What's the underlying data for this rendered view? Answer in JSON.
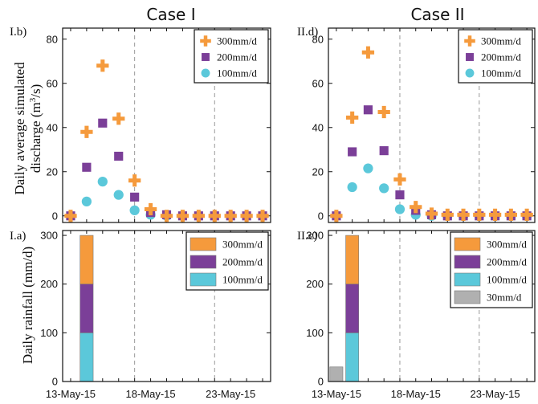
{
  "figure": {
    "case_titles": [
      "Case I",
      "Case II"
    ],
    "discharge_ylabel": "Daily average simulated",
    "discharge_ylabel_line2": "discharge (m",
    "discharge_ylabel_sup": "3",
    "discharge_ylabel_end": "/s)",
    "rainfall_ylabel": "Daily rainfall (mm/d)",
    "date_ticks": [
      "13-May-15",
      "18-May-15",
      "23-May-15"
    ]
  },
  "colors": {
    "c300": "#f59a3c",
    "c200": "#7b3f98",
    "c100": "#5bc8da",
    "c30": "#b0b0b0",
    "frame": "#111111",
    "grid": "#999999"
  },
  "chart_data": [
    {
      "panel_label": "I.b)",
      "type": "scatter",
      "x": [
        1,
        2,
        3,
        4,
        5,
        6,
        7,
        8,
        9,
        10,
        11,
        12,
        13
      ],
      "xlim": [
        0.5,
        13.5
      ],
      "ylim": [
        -3,
        85
      ],
      "yticks": [
        0,
        20,
        40,
        60,
        80
      ],
      "grid_x": [
        5,
        10
      ],
      "legend": "top-right",
      "series": [
        {
          "name": "300mm/d",
          "marker": "plus",
          "color": "#f59a3c",
          "values": [
            0,
            38,
            68,
            44,
            16,
            3,
            0,
            0,
            0,
            0,
            0,
            0,
            0
          ]
        },
        {
          "name": "200mm/d",
          "marker": "square",
          "color": "#7b3f98",
          "values": [
            0,
            22,
            42,
            27,
            8.5,
            1.5,
            0.5,
            0,
            0,
            0,
            0,
            0,
            0
          ]
        },
        {
          "name": "100mm/d",
          "marker": "circle",
          "color": "#5bc8da",
          "values": [
            0,
            6.5,
            15.5,
            9.5,
            2.5,
            0.5,
            0,
            0,
            0,
            0,
            0,
            0,
            0
          ]
        }
      ]
    },
    {
      "panel_label": "II.d)",
      "type": "scatter",
      "x": [
        1,
        2,
        3,
        4,
        5,
        6,
        7,
        8,
        9,
        10,
        11,
        12,
        13
      ],
      "xlim": [
        0.5,
        13.5
      ],
      "ylim": [
        -3,
        85
      ],
      "yticks": [
        0,
        20,
        40,
        60,
        80
      ],
      "grid_x": [
        5,
        10
      ],
      "legend": "top-right",
      "series": [
        {
          "name": "300mm/d",
          "marker": "plus",
          "color": "#f59a3c",
          "values": [
            0,
            44.5,
            74,
            47,
            16.5,
            4,
            1,
            0.5,
            0.5,
            0.5,
            0.5,
            0.5,
            0.5
          ]
        },
        {
          "name": "200mm/d",
          "marker": "square",
          "color": "#7b3f98",
          "values": [
            0,
            29,
            48,
            29.5,
            9.5,
            2.5,
            0.5,
            0,
            0,
            0,
            0,
            0,
            0
          ]
        },
        {
          "name": "100mm/d",
          "marker": "circle",
          "color": "#5bc8da",
          "values": [
            0,
            13,
            21.5,
            12.5,
            3,
            0.5,
            0,
            0,
            0,
            0,
            0,
            0,
            0
          ]
        }
      ]
    },
    {
      "panel_label": "I.a)",
      "type": "bar",
      "stacked": true,
      "xlim": [
        0.5,
        13.5
      ],
      "ylim": [
        0,
        310
      ],
      "yticks": [
        0,
        100,
        200,
        300
      ],
      "grid_x": [
        5,
        10
      ],
      "legend": "top-right",
      "legend_entries": [
        "300mm/d",
        "200mm/d",
        "100mm/d"
      ],
      "bars": [
        {
          "x": 2,
          "segments": [
            {
              "name": "100mm/d",
              "value": 100,
              "color": "#5bc8da"
            },
            {
              "name": "200mm/d",
              "value": 100,
              "color": "#7b3f98"
            },
            {
              "name": "300mm/d",
              "value": 100,
              "color": "#f59a3c"
            }
          ]
        }
      ]
    },
    {
      "panel_label": "II.c)",
      "type": "bar",
      "stacked": true,
      "xlim": [
        0.5,
        13.5
      ],
      "ylim": [
        0,
        310
      ],
      "yticks": [
        0,
        100,
        200,
        300
      ],
      "grid_x": [
        5,
        10
      ],
      "legend": "top-right",
      "legend_entries": [
        "300mm/d",
        "200mm/d",
        "100mm/d",
        "30mm/d"
      ],
      "bars": [
        {
          "x": 1,
          "segments": [
            {
              "name": "30mm/d",
              "value": 30,
              "color": "#b0b0b0"
            }
          ]
        },
        {
          "x": 2,
          "segments": [
            {
              "name": "100mm/d",
              "value": 100,
              "color": "#5bc8da"
            },
            {
              "name": "200mm/d",
              "value": 100,
              "color": "#7b3f98"
            },
            {
              "name": "300mm/d",
              "value": 100,
              "color": "#f59a3c"
            }
          ]
        }
      ]
    }
  ]
}
